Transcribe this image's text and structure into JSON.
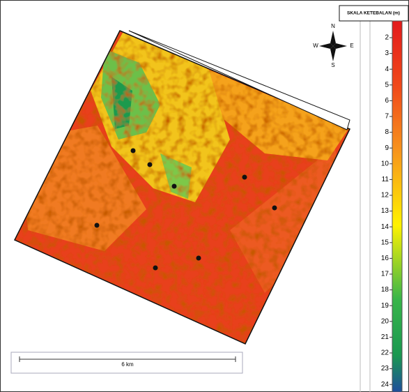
{
  "legend": {
    "title": "SKALA KETEBALAN  (m)",
    "ticks": [
      "2",
      "3",
      "4",
      "5",
      "6",
      "7",
      "8",
      "9",
      "10",
      "11",
      "12",
      "13",
      "14",
      "15",
      "16",
      "17",
      "18",
      "19",
      "20",
      "21",
      "22",
      "23",
      "24"
    ]
  },
  "compass": {
    "north": "N",
    "south": "S",
    "east": "E",
    "west": "W"
  },
  "scale_bar": {
    "label": "6 km"
  }
}
